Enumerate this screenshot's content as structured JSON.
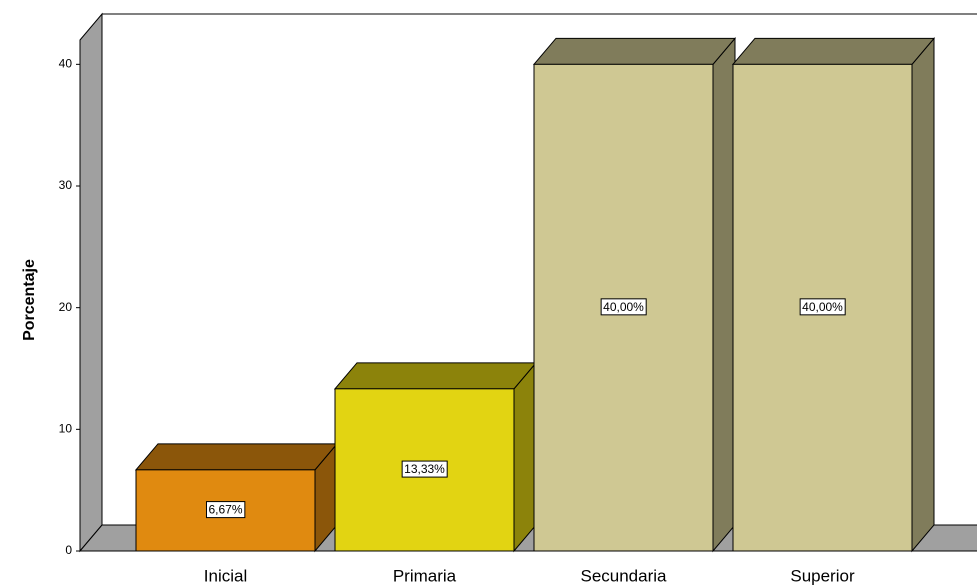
{
  "chart_data": {
    "type": "bar3d",
    "y_label": "Porcentaje",
    "categories": [
      "Inicial",
      "Primaria",
      "Secundaria",
      "Superior"
    ],
    "values": [
      6.67,
      13.33,
      40,
      40
    ],
    "value_labels": [
      "6,67%",
      "13,33%",
      "40,00%",
      "40,00%"
    ],
    "colors": [
      "#e08a10",
      "#e2d412",
      "#cfc893",
      "#cfc893"
    ],
    "ylim": [
      0,
      42
    ],
    "yticks": [
      0,
      10,
      20,
      30,
      40
    ]
  }
}
